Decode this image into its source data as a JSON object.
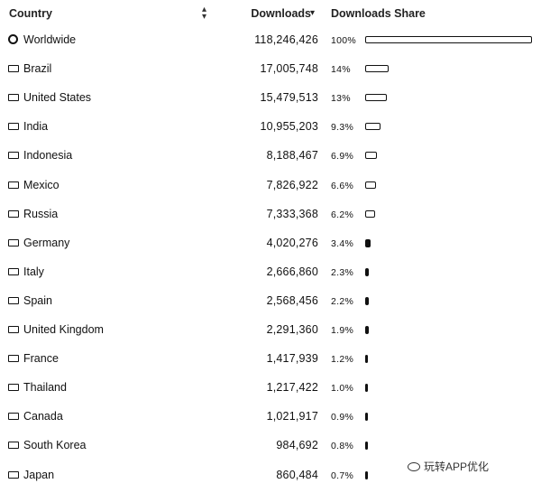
{
  "header": {
    "country": "Country",
    "downloads": "Downloads",
    "share": "Downloads Share",
    "sort_both_icon": "sort-icon",
    "sort_down_icon": "sort-descending-icon"
  },
  "rows": [
    {
      "country": "Worldwide",
      "downloads": "118,246,426",
      "share": "100%",
      "share_value": 100,
      "icon": "globe-icon"
    },
    {
      "country": "Brazil",
      "downloads": "17,005,748",
      "share": "14%",
      "share_value": 14,
      "icon": "flag-brazil-icon"
    },
    {
      "country": "United States",
      "downloads": "15,479,513",
      "share": "13%",
      "share_value": 13,
      "icon": "flag-us-icon"
    },
    {
      "country": "India",
      "downloads": "10,955,203",
      "share": "9.3%",
      "share_value": 9.3,
      "icon": "flag-india-icon"
    },
    {
      "country": "Indonesia",
      "downloads": "8,188,467",
      "share": "6.9%",
      "share_value": 6.9,
      "icon": "flag-indonesia-icon"
    },
    {
      "country": "Mexico",
      "downloads": "7,826,922",
      "share": "6.6%",
      "share_value": 6.6,
      "icon": "flag-mexico-icon"
    },
    {
      "country": "Russia",
      "downloads": "7,333,368",
      "share": "6.2%",
      "share_value": 6.2,
      "icon": "flag-russia-icon"
    },
    {
      "country": "Germany",
      "downloads": "4,020,276",
      "share": "3.4%",
      "share_value": 3.4,
      "icon": "flag-germany-icon"
    },
    {
      "country": "Italy",
      "downloads": "2,666,860",
      "share": "2.3%",
      "share_value": 2.3,
      "icon": "flag-italy-icon"
    },
    {
      "country": "Spain",
      "downloads": "2,568,456",
      "share": "2.2%",
      "share_value": 2.2,
      "icon": "flag-spain-icon"
    },
    {
      "country": "United Kingdom",
      "downloads": "2,291,360",
      "share": "1.9%",
      "share_value": 1.9,
      "icon": "flag-uk-icon"
    },
    {
      "country": "France",
      "downloads": "1,417,939",
      "share": "1.2%",
      "share_value": 1.2,
      "icon": "flag-france-icon"
    },
    {
      "country": "Thailand",
      "downloads": "1,217,422",
      "share": "1.0%",
      "share_value": 1.0,
      "icon": "flag-thailand-icon"
    },
    {
      "country": "Canada",
      "downloads": "1,021,917",
      "share": "0.9%",
      "share_value": 0.9,
      "icon": "flag-canada-icon"
    },
    {
      "country": "South Korea",
      "downloads": "984,692",
      "share": "0.8%",
      "share_value": 0.8,
      "icon": "flag-south-korea-icon"
    },
    {
      "country": "Japan",
      "downloads": "860,484",
      "share": "0.7%",
      "share_value": 0.7,
      "icon": "flag-japan-icon"
    }
  ],
  "watermark": "玩转APP优化"
}
